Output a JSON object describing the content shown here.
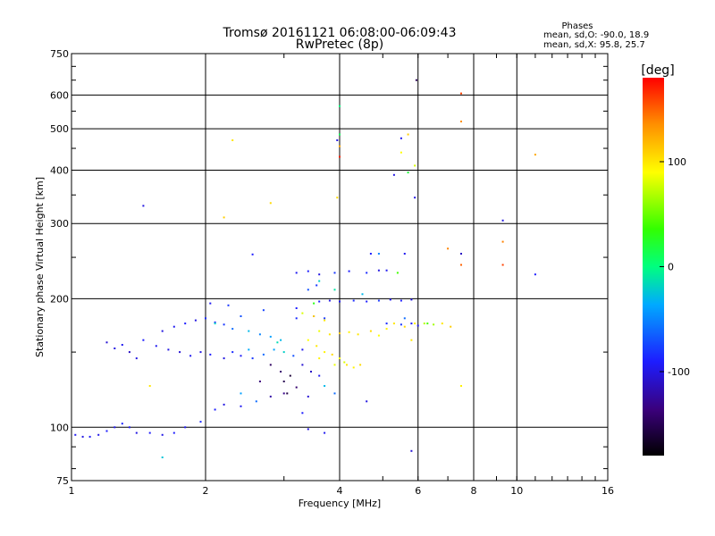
{
  "chart_data": {
    "type": "scatter",
    "title": "Tromsø 20161121 06:08:00-06:09:43",
    "subtitle": "RwPretec (8p)",
    "xlabel": "Frequency [MHz]",
    "ylabel": "Stationary phase Virtual Height [km]",
    "x_scale": "log",
    "y_scale": "log",
    "xlim": [
      1,
      16
    ],
    "ylim": [
      75,
      750
    ],
    "x_ticks": [
      1,
      2,
      4,
      6,
      8,
      10,
      16
    ],
    "x_tick_labels": [
      "1",
      "2",
      "4",
      "6",
      "8",
      "10",
      "16"
    ],
    "y_ticks": [
      75,
      100,
      200,
      300,
      400,
      500,
      600,
      750
    ],
    "y_tick_labels": [
      "75",
      "100",
      "200",
      "300",
      "400",
      "500",
      "600",
      "750"
    ],
    "grid": true,
    "stats": {
      "heading": "Phases",
      "line1": "mean, sd,O: -90.0, 18.9",
      "line2": "mean, sd,X:  95.8, 25.7"
    },
    "colorbar": {
      "label": "[deg]",
      "range": [
        -180,
        180
      ],
      "ticks": [
        100,
        0,
        -100
      ],
      "tick_labels": [
        "100",
        "0",
        "-100"
      ]
    },
    "series": [
      {
        "points": [
          {
            "x": 1.02,
            "y": 96,
            "phase": -95
          },
          {
            "x": 1.06,
            "y": 95,
            "phase": -100
          },
          {
            "x": 1.1,
            "y": 95,
            "phase": -92
          },
          {
            "x": 1.15,
            "y": 96,
            "phase": -98
          },
          {
            "x": 1.2,
            "y": 98,
            "phase": -90
          },
          {
            "x": 1.25,
            "y": 100,
            "phase": -96
          },
          {
            "x": 1.3,
            "y": 102,
            "phase": -88
          },
          {
            "x": 1.35,
            "y": 100,
            "phase": -94
          },
          {
            "x": 1.4,
            "y": 97,
            "phase": -100
          },
          {
            "x": 1.5,
            "y": 97,
            "phase": -92
          },
          {
            "x": 1.6,
            "y": 96,
            "phase": -98
          },
          {
            "x": 1.7,
            "y": 97,
            "phase": -90
          },
          {
            "x": 1.8,
            "y": 100,
            "phase": -95
          },
          {
            "x": 1.95,
            "y": 103,
            "phase": -85
          },
          {
            "x": 2.1,
            "y": 110,
            "phase": -90
          },
          {
            "x": 2.2,
            "y": 113,
            "phase": -100
          },
          {
            "x": 2.4,
            "y": 112,
            "phase": -94
          },
          {
            "x": 2.6,
            "y": 115,
            "phase": -60
          },
          {
            "x": 2.8,
            "y": 118,
            "phase": -120
          },
          {
            "x": 3.0,
            "y": 120,
            "phase": -130
          },
          {
            "x": 3.2,
            "y": 124,
            "phase": -140
          },
          {
            "x": 3.3,
            "y": 108,
            "phase": -90
          },
          {
            "x": 3.4,
            "y": 99,
            "phase": -100
          },
          {
            "x": 1.2,
            "y": 158,
            "phase": -105
          },
          {
            "x": 1.25,
            "y": 153,
            "phase": -100
          },
          {
            "x": 1.3,
            "y": 156,
            "phase": -95
          },
          {
            "x": 1.35,
            "y": 150,
            "phase": -110
          },
          {
            "x": 1.4,
            "y": 145,
            "phase": -100
          },
          {
            "x": 1.45,
            "y": 160,
            "phase": -90
          },
          {
            "x": 1.55,
            "y": 155,
            "phase": -95
          },
          {
            "x": 1.65,
            "y": 152,
            "phase": -100
          },
          {
            "x": 1.75,
            "y": 150,
            "phase": -105
          },
          {
            "x": 1.85,
            "y": 147,
            "phase": -95
          },
          {
            "x": 1.95,
            "y": 150,
            "phase": -100
          },
          {
            "x": 2.05,
            "y": 148,
            "phase": -90
          },
          {
            "x": 2.2,
            "y": 145,
            "phase": -100
          },
          {
            "x": 2.3,
            "y": 150,
            "phase": -85
          },
          {
            "x": 2.4,
            "y": 147,
            "phase": -92
          },
          {
            "x": 2.55,
            "y": 145,
            "phase": -80
          },
          {
            "x": 2.7,
            "y": 148,
            "phase": -60
          },
          {
            "x": 2.85,
            "y": 152,
            "phase": -40
          },
          {
            "x": 3.0,
            "y": 150,
            "phase": -20
          },
          {
            "x": 3.15,
            "y": 147,
            "phase": -70
          },
          {
            "x": 3.3,
            "y": 152,
            "phase": -95
          },
          {
            "x": 1.6,
            "y": 168,
            "phase": -100
          },
          {
            "x": 1.7,
            "y": 172,
            "phase": -95
          },
          {
            "x": 1.8,
            "y": 175,
            "phase": -90
          },
          {
            "x": 1.9,
            "y": 178,
            "phase": -100
          },
          {
            "x": 2.0,
            "y": 180,
            "phase": -85
          },
          {
            "x": 2.1,
            "y": 176,
            "phase": -90
          },
          {
            "x": 2.2,
            "y": 174,
            "phase": -80
          },
          {
            "x": 2.3,
            "y": 170,
            "phase": -60
          },
          {
            "x": 2.5,
            "y": 168,
            "phase": -30
          },
          {
            "x": 2.65,
            "y": 165,
            "phase": -50
          },
          {
            "x": 2.8,
            "y": 163,
            "phase": -40
          },
          {
            "x": 2.95,
            "y": 160,
            "phase": -30
          },
          {
            "x": 2.05,
            "y": 195,
            "phase": -95
          },
          {
            "x": 2.25,
            "y": 193,
            "phase": -80
          },
          {
            "x": 2.4,
            "y": 182,
            "phase": -70
          },
          {
            "x": 2.7,
            "y": 188,
            "phase": -75
          },
          {
            "x": 3.2,
            "y": 190,
            "phase": -90
          },
          {
            "x": 3.4,
            "y": 210,
            "phase": -70
          },
          {
            "x": 3.55,
            "y": 215,
            "phase": -80
          },
          {
            "x": 3.2,
            "y": 230,
            "phase": -95
          },
          {
            "x": 3.4,
            "y": 232,
            "phase": -90
          },
          {
            "x": 3.6,
            "y": 228,
            "phase": -100
          },
          {
            "x": 3.9,
            "y": 230,
            "phase": -80
          },
          {
            "x": 4.2,
            "y": 232,
            "phase": -90
          },
          {
            "x": 4.6,
            "y": 230,
            "phase": -85
          },
          {
            "x": 4.9,
            "y": 233,
            "phase": -100
          },
          {
            "x": 5.1,
            "y": 233,
            "phase": -95
          },
          {
            "x": 3.6,
            "y": 197,
            "phase": -90
          },
          {
            "x": 3.8,
            "y": 198,
            "phase": -100
          },
          {
            "x": 4.0,
            "y": 197,
            "phase": -95
          },
          {
            "x": 4.3,
            "y": 198,
            "phase": -85
          },
          {
            "x": 4.6,
            "y": 197,
            "phase": -90
          },
          {
            "x": 4.9,
            "y": 198,
            "phase": -80
          },
          {
            "x": 5.2,
            "y": 199,
            "phase": -95
          },
          {
            "x": 5.5,
            "y": 198,
            "phase": -90
          },
          {
            "x": 5.8,
            "y": 199,
            "phase": -100
          },
          {
            "x": 3.3,
            "y": 140,
            "phase": -105
          },
          {
            "x": 3.45,
            "y": 135,
            "phase": -110
          },
          {
            "x": 3.6,
            "y": 132,
            "phase": -95
          },
          {
            "x": 3.2,
            "y": 180,
            "phase": -85
          },
          {
            "x": 3.5,
            "y": 182,
            "phase": -90
          },
          {
            "x": 3.7,
            "y": 180,
            "phase": -80
          },
          {
            "x": 5.1,
            "y": 175,
            "phase": -85
          },
          {
            "x": 5.5,
            "y": 174,
            "phase": -80
          },
          {
            "x": 5.8,
            "y": 175,
            "phase": -90
          },
          {
            "x": 6.0,
            "y": 173,
            "phase": -95
          },
          {
            "x": 3.7,
            "y": 97,
            "phase": -95
          },
          {
            "x": 3.4,
            "y": 118,
            "phase": -105
          },
          {
            "x": 1.45,
            "y": 330,
            "phase": -100
          },
          {
            "x": 5.3,
            "y": 390,
            "phase": -100
          },
          {
            "x": 4.7,
            "y": 255,
            "phase": -90
          },
          {
            "x": 5.6,
            "y": 255,
            "phase": -95
          },
          {
            "x": 3.95,
            "y": 470,
            "phase": -100
          },
          {
            "x": 5.5,
            "y": 475,
            "phase": -95
          },
          {
            "x": 7.5,
            "y": 255,
            "phase": -110
          },
          {
            "x": 9.3,
            "y": 305,
            "phase": -100
          },
          {
            "x": 11.0,
            "y": 228,
            "phase": -90
          },
          {
            "x": 5.8,
            "y": 88,
            "phase": -105
          },
          {
            "x": 2.55,
            "y": 254,
            "phase": -90
          },
          {
            "x": 5.9,
            "y": 345,
            "phase": -100
          }
        ]
      },
      {
        "points": [
          {
            "x": 3.4,
            "y": 160,
            "phase": 90
          },
          {
            "x": 3.55,
            "y": 155,
            "phase": 100
          },
          {
            "x": 3.7,
            "y": 150,
            "phase": 95
          },
          {
            "x": 3.85,
            "y": 148,
            "phase": 105
          },
          {
            "x": 4.0,
            "y": 145,
            "phase": 90
          },
          {
            "x": 4.15,
            "y": 140,
            "phase": 100
          },
          {
            "x": 4.3,
            "y": 138,
            "phase": 95
          },
          {
            "x": 4.45,
            "y": 140,
            "phase": 105
          },
          {
            "x": 3.6,
            "y": 168,
            "phase": 85
          },
          {
            "x": 3.8,
            "y": 165,
            "phase": 100
          },
          {
            "x": 4.0,
            "y": 166,
            "phase": 110
          },
          {
            "x": 4.2,
            "y": 167,
            "phase": 95
          },
          {
            "x": 4.4,
            "y": 165,
            "phase": 100
          },
          {
            "x": 4.7,
            "y": 168,
            "phase": 105
          },
          {
            "x": 4.9,
            "y": 164,
            "phase": 90
          },
          {
            "x": 5.1,
            "y": 170,
            "phase": 95
          },
          {
            "x": 3.3,
            "y": 185,
            "phase": 80
          },
          {
            "x": 3.5,
            "y": 182,
            "phase": 110
          },
          {
            "x": 3.7,
            "y": 178,
            "phase": 100
          },
          {
            "x": 5.3,
            "y": 175,
            "phase": 100
          },
          {
            "x": 5.6,
            "y": 172,
            "phase": 105
          },
          {
            "x": 5.9,
            "y": 175,
            "phase": 95
          },
          {
            "x": 6.2,
            "y": 175,
            "phase": 70
          },
          {
            "x": 6.5,
            "y": 174,
            "phase": 65
          },
          {
            "x": 6.8,
            "y": 175,
            "phase": 100
          },
          {
            "x": 7.1,
            "y": 172,
            "phase": 110
          },
          {
            "x": 3.9,
            "y": 140,
            "phase": 85
          },
          {
            "x": 4.1,
            "y": 142,
            "phase": 80
          },
          {
            "x": 3.6,
            "y": 145,
            "phase": 95
          },
          {
            "x": 4.0,
            "y": 455,
            "phase": 125
          },
          {
            "x": 4.0,
            "y": 430,
            "phase": 170
          },
          {
            "x": 3.95,
            "y": 345,
            "phase": 105
          },
          {
            "x": 5.5,
            "y": 440,
            "phase": 90
          },
          {
            "x": 5.7,
            "y": 485,
            "phase": 110
          },
          {
            "x": 5.9,
            "y": 410,
            "phase": 80
          },
          {
            "x": 7.5,
            "y": 605,
            "phase": 160
          },
          {
            "x": 7.5,
            "y": 520,
            "phase": 135
          },
          {
            "x": 7.5,
            "y": 240,
            "phase": 150
          },
          {
            "x": 7.0,
            "y": 262,
            "phase": 140
          },
          {
            "x": 9.3,
            "y": 272,
            "phase": 140
          },
          {
            "x": 9.3,
            "y": 240,
            "phase": 160
          },
          {
            "x": 11.0,
            "y": 435,
            "phase": 125
          },
          {
            "x": 2.2,
            "y": 310,
            "phase": 110
          },
          {
            "x": 2.8,
            "y": 335,
            "phase": 105
          },
          {
            "x": 2.3,
            "y": 470,
            "phase": 100
          },
          {
            "x": 7.5,
            "y": 125,
            "phase": 95
          },
          {
            "x": 5.8,
            "y": 160,
            "phase": 100
          }
        ]
      },
      {
        "points": [
          {
            "x": 4.0,
            "y": 565,
            "phase": 0
          },
          {
            "x": 4.0,
            "y": 485,
            "phase": 10
          },
          {
            "x": 5.95,
            "y": 650,
            "phase": -150
          },
          {
            "x": 5.7,
            "y": 395,
            "phase": 20
          },
          {
            "x": 3.9,
            "y": 210,
            "phase": -10
          },
          {
            "x": 4.5,
            "y": 205,
            "phase": -30
          },
          {
            "x": 2.1,
            "y": 175,
            "phase": -20
          },
          {
            "x": 2.9,
            "y": 158,
            "phase": -15
          },
          {
            "x": 2.5,
            "y": 152,
            "phase": -35
          },
          {
            "x": 1.6,
            "y": 85,
            "phase": -25
          },
          {
            "x": 3.1,
            "y": 132,
            "phase": -160
          },
          {
            "x": 3.0,
            "y": 128,
            "phase": -150
          },
          {
            "x": 2.95,
            "y": 135,
            "phase": -140
          },
          {
            "x": 2.8,
            "y": 140,
            "phase": -145
          },
          {
            "x": 3.05,
            "y": 120,
            "phase": -155
          },
          {
            "x": 2.65,
            "y": 128,
            "phase": -135
          },
          {
            "x": 6.3,
            "y": 175,
            "phase": 40
          },
          {
            "x": 5.6,
            "y": 180,
            "phase": -60
          },
          {
            "x": 3.5,
            "y": 195,
            "phase": 30
          },
          {
            "x": 4.9,
            "y": 255,
            "phase": -50
          },
          {
            "x": 5.4,
            "y": 230,
            "phase": 40
          },
          {
            "x": 3.6,
            "y": 220,
            "phase": -20
          },
          {
            "x": 1.5,
            "y": 125,
            "phase": 100
          },
          {
            "x": 2.4,
            "y": 120,
            "phase": -40
          },
          {
            "x": 4.6,
            "y": 115,
            "phase": -100
          },
          {
            "x": 3.7,
            "y": 125,
            "phase": -30
          },
          {
            "x": 3.9,
            "y": 120,
            "phase": -60
          }
        ]
      }
    ]
  }
}
